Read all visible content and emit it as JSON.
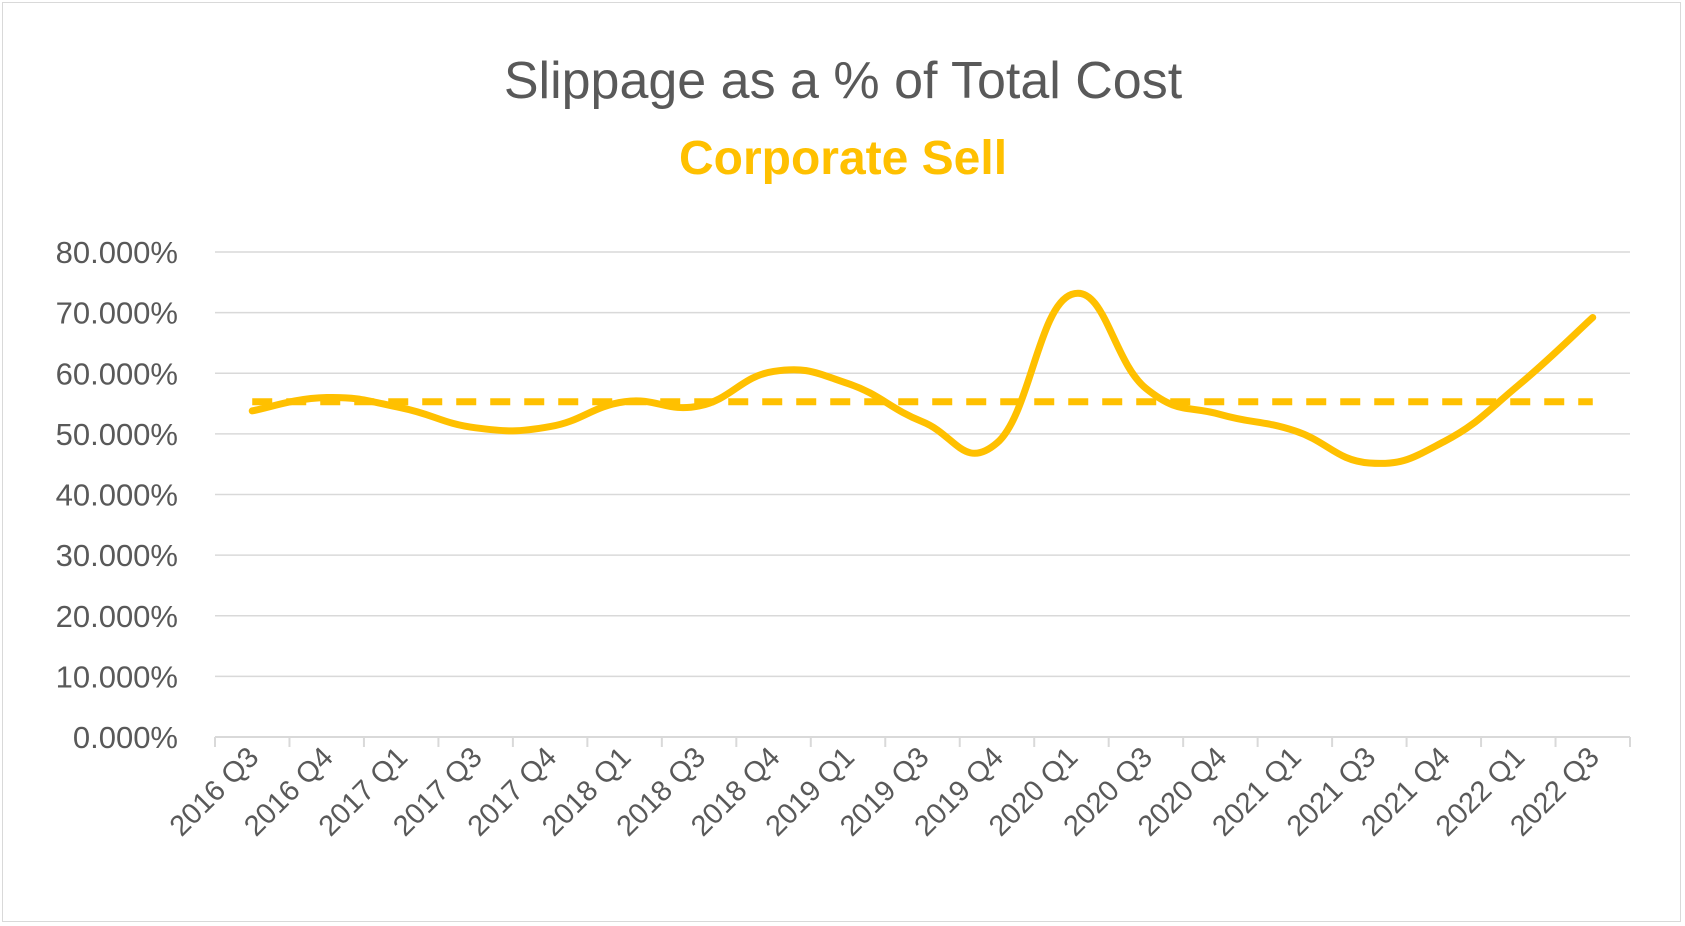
{
  "chart_data": {
    "type": "line",
    "title": "Slippage as a % of Total Cost",
    "subtitle": "Corporate Sell",
    "xlabel": "",
    "ylabel": "",
    "ylim": [
      0,
      80
    ],
    "yticks": [
      "0.000%",
      "10.000%",
      "20.000%",
      "30.000%",
      "40.000%",
      "50.000%",
      "60.000%",
      "70.000%",
      "80.000%"
    ],
    "categories": [
      "2016 Q3",
      "2016 Q4",
      "2017 Q1",
      "2017 Q3",
      "2017 Q4",
      "2018 Q1",
      "2018 Q3",
      "2018 Q4",
      "2019 Q1",
      "2019 Q3",
      "2019 Q4",
      "2020 Q1",
      "2020 Q3",
      "2020 Q4",
      "2021 Q1",
      "2021 Q3",
      "2021 Q4",
      "2022 Q1",
      "2022 Q3"
    ],
    "series": [
      {
        "values": [
          53.8,
          56.0,
          54.3,
          51.0,
          51.2,
          55.3,
          54.6,
          60.3,
          58.3,
          52.0,
          48.5,
          73.0,
          57.5,
          53.2,
          50.5,
          45.2,
          48.7,
          58.0,
          69.2
        ],
        "color": "#ffc000",
        "style": "solid smooth"
      },
      {
        "values": [
          55.3,
          55.3,
          55.3,
          55.3,
          55.3,
          55.3,
          55.3,
          55.3,
          55.3,
          55.3,
          55.3,
          55.3,
          55.3,
          55.3,
          55.3,
          55.3,
          55.3,
          55.3,
          55.3
        ],
        "color": "#ffc000",
        "style": "dashed"
      }
    ],
    "grid": true,
    "legend": "none",
    "colors": {
      "series": "#ffc000",
      "grid": "#d9d9d9",
      "text": "#595959"
    }
  }
}
